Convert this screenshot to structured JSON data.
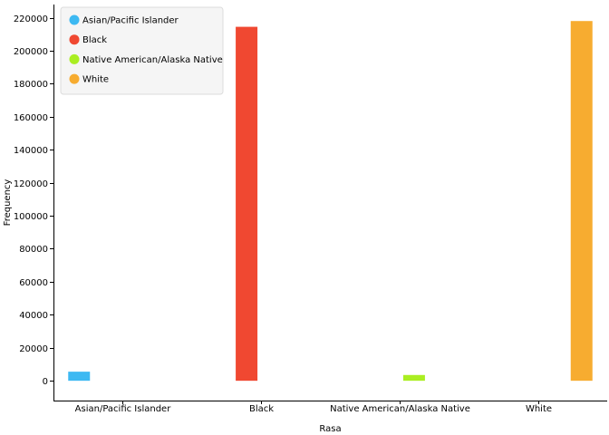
{
  "chart_data": {
    "type": "bar",
    "title": "",
    "xlabel": "Rasa",
    "ylabel": "Frequency",
    "ylim": [
      -12000,
      228000
    ],
    "yticks": [
      0,
      20000,
      40000,
      60000,
      80000,
      100000,
      120000,
      140000,
      160000,
      180000,
      200000,
      220000
    ],
    "ytick_labels": [
      "0",
      "20000",
      "40000",
      "60000",
      "80000",
      "100000",
      "120000",
      "140000",
      "160000",
      "180000",
      "200000",
      "220000"
    ],
    "categories": [
      "Asian/Pacific Islander",
      "Black",
      "Native American/Alaska Native",
      "White"
    ],
    "series": [
      {
        "name": "Asian/Pacific Islander",
        "color": "#3db9f2",
        "values": [
          5500,
          0,
          0,
          0
        ]
      },
      {
        "name": "Black",
        "color": "#f04831",
        "values": [
          0,
          214500,
          0,
          0
        ]
      },
      {
        "name": "Native American/Alaska Native",
        "color": "#aaee22",
        "values": [
          0,
          0,
          3500,
          0
        ]
      },
      {
        "name": "White",
        "color": "#f7ac30",
        "values": [
          0,
          0,
          0,
          218000
        ]
      }
    ],
    "legend": {
      "position": "top-left",
      "entries": [
        "Asian/Pacific Islander",
        "Black",
        "Native American/Alaska Native",
        "White"
      ]
    },
    "grid": false
  }
}
